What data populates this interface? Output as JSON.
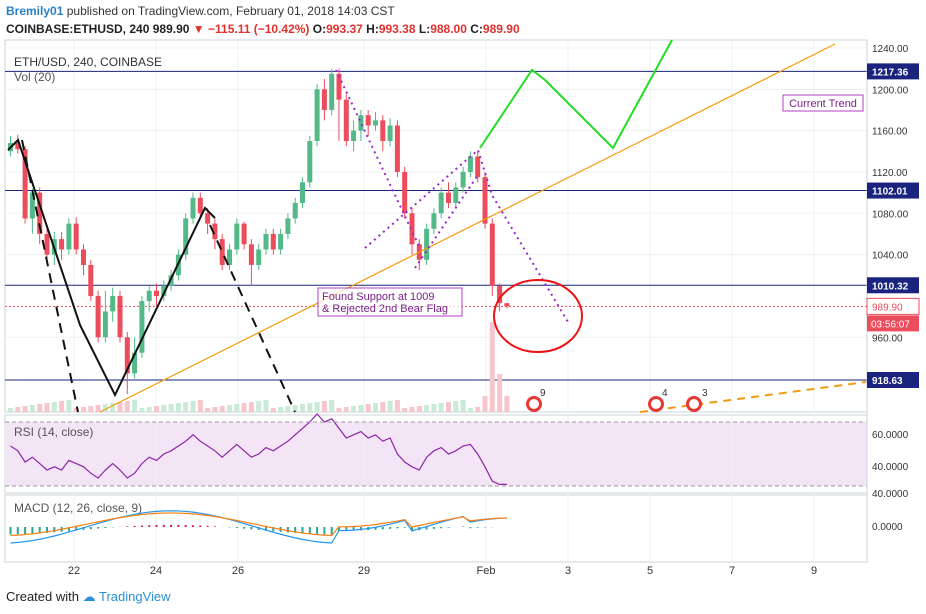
{
  "header": {
    "author": "Bremily01",
    "published_text": "published on TradingView.com, February 01, 2018 14:03 CST",
    "symbol_line": "COINBASE:ETHUSD, 240",
    "last": "989.90",
    "change": "−115.11 (−10.42%)",
    "open_label": "O:",
    "open": "993.37",
    "high_label": "H:",
    "high": "993.38",
    "low_label": "L:",
    "low": "988.00",
    "close_label": "C:",
    "close": "989.90"
  },
  "footer": {
    "created_with": "Created with",
    "brand": "TradingView"
  },
  "colors": {
    "up": "#53b987",
    "down": "#eb4d5c",
    "trend_orange": "#f39c12",
    "level_navy": "#1a237e",
    "projection_green": "#22dd22",
    "pattern_purple": "#9c27d0",
    "circle_red": "#ee1111",
    "rsi_fill": "#f3e5f5",
    "macd_blue": "#2196f3",
    "signal_orange": "#ff7f0e"
  },
  "chart_data": {
    "type": "candlestick",
    "title": "ETH/USD, 240, COINBASE",
    "volume_label": "Vol (20)",
    "ylim": [
      900,
      1245
    ],
    "y_ticks": [
      "1240.00",
      "1200.00",
      "1160.00",
      "1120.00",
      "1080.00",
      "1040.00",
      "960.00"
    ],
    "x_ticks": [
      "22",
      "24",
      "26",
      "29",
      "Feb",
      "3",
      "5",
      "7",
      "9"
    ],
    "horizontal_levels": [
      "1217.36",
      "1102.01",
      "1010.32",
      "918.63"
    ],
    "last_price_label": "989.90",
    "countdown": "03:56:07",
    "annotations": {
      "current_trend": "Current Trend",
      "support_line1": "Found Support at 1009",
      "support_line2": "& Rejected 2nd Bear Flag"
    },
    "event_badges": [
      "9",
      "4",
      "3"
    ],
    "candles": [
      [
        1140,
        1148,
        1135,
        1155
      ],
      [
        1148,
        1142,
        1138,
        1156
      ],
      [
        1142,
        1075,
        1070,
        1145
      ],
      [
        1075,
        1100,
        1060,
        1104
      ],
      [
        1100,
        1060,
        1050,
        1105
      ],
      [
        1060,
        1040,
        1032,
        1068
      ],
      [
        1040,
        1055,
        1030,
        1062
      ],
      [
        1055,
        1045,
        1035,
        1062
      ],
      [
        1045,
        1070,
        1040,
        1075
      ],
      [
        1070,
        1045,
        1040,
        1076
      ],
      [
        1045,
        1030,
        1020,
        1050
      ],
      [
        1030,
        1000,
        995,
        1035
      ],
      [
        1000,
        960,
        955,
        1005
      ],
      [
        960,
        985,
        955,
        1005
      ],
      [
        985,
        1000,
        975,
        1008
      ],
      [
        1000,
        960,
        955,
        1005
      ],
      [
        960,
        925,
        905,
        965
      ],
      [
        925,
        945,
        920,
        960
      ],
      [
        945,
        995,
        940,
        1000
      ],
      [
        995,
        1005,
        985,
        1010
      ],
      [
        1005,
        1000,
        990,
        1012
      ],
      [
        1000,
        1010,
        995,
        1015
      ],
      [
        1010,
        1020,
        1005,
        1025
      ],
      [
        1020,
        1040,
        1015,
        1045
      ],
      [
        1040,
        1075,
        1035,
        1080
      ],
      [
        1075,
        1095,
        1070,
        1100
      ],
      [
        1095,
        1080,
        1075,
        1100
      ],
      [
        1080,
        1070,
        1060,
        1085
      ],
      [
        1070,
        1055,
        1045,
        1075
      ],
      [
        1055,
        1030,
        1025,
        1060
      ],
      [
        1030,
        1045,
        1025,
        1050
      ],
      [
        1045,
        1070,
        1040,
        1075
      ],
      [
        1070,
        1050,
        1045,
        1072
      ],
      [
        1050,
        1030,
        1010,
        1055
      ],
      [
        1030,
        1045,
        1025,
        1050
      ],
      [
        1045,
        1060,
        1040,
        1065
      ],
      [
        1060,
        1045,
        1040,
        1065
      ],
      [
        1045,
        1060,
        1040,
        1065
      ],
      [
        1060,
        1075,
        1055,
        1080
      ],
      [
        1075,
        1090,
        1070,
        1095
      ],
      [
        1090,
        1110,
        1085,
        1115
      ],
      [
        1110,
        1150,
        1105,
        1155
      ],
      [
        1150,
        1200,
        1145,
        1205
      ],
      [
        1200,
        1180,
        1170,
        1210
      ],
      [
        1180,
        1215,
        1175,
        1220
      ],
      [
        1215,
        1190,
        1150,
        1220
      ],
      [
        1190,
        1150,
        1145,
        1195
      ],
      [
        1150,
        1160,
        1140,
        1170
      ],
      [
        1160,
        1175,
        1150,
        1180
      ],
      [
        1175,
        1165,
        1155,
        1180
      ],
      [
        1165,
        1170,
        1160,
        1178
      ],
      [
        1170,
        1150,
        1140,
        1175
      ],
      [
        1150,
        1165,
        1145,
        1172
      ],
      [
        1165,
        1120,
        1115,
        1170
      ],
      [
        1120,
        1080,
        1075,
        1125
      ],
      [
        1080,
        1050,
        1040,
        1085
      ],
      [
        1050,
        1035,
        1025,
        1055
      ],
      [
        1035,
        1065,
        1030,
        1070
      ],
      [
        1065,
        1080,
        1060,
        1085
      ],
      [
        1080,
        1100,
        1075,
        1105
      ],
      [
        1100,
        1090,
        1085,
        1110
      ],
      [
        1090,
        1105,
        1085,
        1110
      ],
      [
        1105,
        1120,
        1100,
        1125
      ],
      [
        1120,
        1135,
        1115,
        1140
      ],
      [
        1135,
        1115,
        1110,
        1140
      ],
      [
        1115,
        1070,
        1065,
        1120
      ],
      [
        1070,
        1010,
        1000,
        1075
      ],
      [
        1010,
        993,
        985,
        1012
      ],
      [
        993,
        990,
        988,
        993
      ]
    ],
    "rsi": {
      "label": "RSI (14, close)",
      "ticks": [
        "60.0000",
        "40.0000"
      ],
      "overbought": 70,
      "oversold": 30,
      "values": [
        55,
        52,
        45,
        48,
        44,
        40,
        42,
        40,
        46,
        44,
        42,
        38,
        35,
        40,
        44,
        40,
        35,
        38,
        44,
        48,
        46,
        50,
        52,
        55,
        58,
        62,
        58,
        55,
        52,
        48,
        52,
        56,
        52,
        48,
        50,
        54,
        52,
        55,
        58,
        62,
        66,
        70,
        75,
        70,
        72,
        66,
        60,
        62,
        64,
        60,
        62,
        58,
        60,
        50,
        45,
        42,
        40,
        48,
        52,
        54,
        50,
        52,
        55,
        56,
        50,
        42,
        33,
        31,
        31
      ]
    },
    "macd": {
      "label": "MACD (12, 26, close, 9)",
      "ticks": [
        "40.0000",
        "0.0000"
      ]
    }
  }
}
